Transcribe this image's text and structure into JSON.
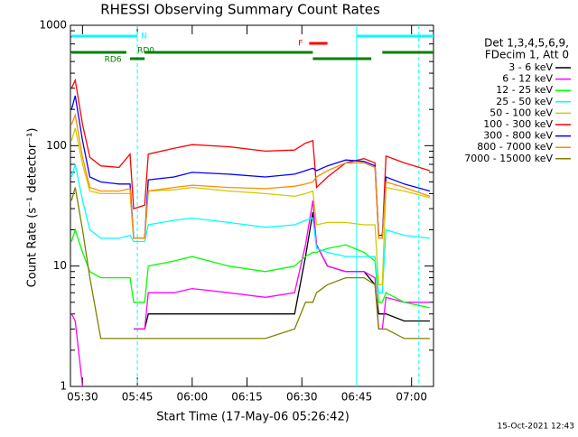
{
  "chart_data": {
    "type": "line",
    "title": "RHESSI Observing Summary Count Rates",
    "xlabel": "Start Time (17-May-06 05:26:42)",
    "ylabel": "Count Rate (s⁻¹ detector⁻¹)",
    "footer": "15-Oct-2021 12:43",
    "legend_title": [
      "Det 1,3,4,5,6,9,",
      "FDecim 1, Att 0"
    ],
    "log_y": true,
    "xlim": [
      "05:26:42",
      "07:06"
    ],
    "ylim": [
      1,
      1000
    ],
    "yticks": [
      1,
      10,
      100,
      1000
    ],
    "xticks": [
      "05:30",
      "05:45",
      "06:00",
      "06:15",
      "06:30",
      "06:45",
      "07:00"
    ],
    "x": [
      "05:27",
      "05:28",
      "05:30",
      "05:32",
      "05:35",
      "05:40",
      "05:43",
      "05:44",
      "05:47",
      "05:48",
      "05:55",
      "06:00",
      "06:10",
      "06:20",
      "06:28",
      "06:31",
      "06:33",
      "06:34",
      "06:37",
      "06:42",
      "06:47",
      "06:50",
      "06:51",
      "06:52",
      "06:53",
      "06:58",
      "07:05"
    ],
    "series": [
      {
        "name": "3 - 6 keV",
        "color": "#000000",
        "values": [
          null,
          null,
          null,
          null,
          null,
          null,
          null,
          3,
          3,
          4,
          4,
          4,
          4,
          4,
          4,
          12,
          28,
          15,
          10,
          9,
          9,
          7,
          4,
          4,
          4,
          3.5,
          3.5
        ]
      },
      {
        "name": "6 - 12 keV",
        "color": "#ff00ff",
        "values": [
          4,
          3.5,
          1,
          null,
          null,
          null,
          null,
          3,
          3,
          6,
          6,
          6.5,
          6,
          5.5,
          6,
          15,
          35,
          15,
          10,
          9,
          9,
          8,
          3,
          3,
          5.5,
          5,
          5
        ]
      },
      {
        "name": "12 - 25 keV",
        "color": "#00ff00",
        "values": [
          16,
          20,
          13,
          9,
          8,
          8,
          8,
          5,
          5,
          10,
          11,
          12,
          10,
          9,
          10,
          12,
          13,
          13,
          14,
          15,
          13,
          11,
          5,
          5,
          6,
          5,
          4.5
        ]
      },
      {
        "name": "25 - 50 keV",
        "color": "#00ffff",
        "values": [
          55,
          70,
          35,
          20,
          17,
          17,
          18,
          16,
          16,
          22,
          24,
          25,
          23,
          21,
          22,
          24,
          25,
          14,
          13,
          12,
          12,
          12,
          6,
          6,
          20,
          18,
          17
        ]
      },
      {
        "name": "50 - 100 keV",
        "color": "#cccc00",
        "values": [
          110,
          140,
          70,
          42,
          40,
          40,
          40,
          17,
          17,
          42,
          43,
          45,
          42,
          40,
          38,
          40,
          42,
          22,
          23,
          23,
          22,
          22,
          7,
          7,
          45,
          42,
          37
        ]
      },
      {
        "name": "100 - 300 keV",
        "color": "#ff0000",
        "values": [
          300,
          350,
          150,
          80,
          68,
          66,
          85,
          30,
          32,
          85,
          95,
          102,
          98,
          90,
          92,
          105,
          110,
          45,
          55,
          72,
          78,
          72,
          17,
          17,
          82,
          72,
          62
        ]
      },
      {
        "name": "300 - 800 keV",
        "color": "#0000ff",
        "values": [
          200,
          260,
          110,
          55,
          50,
          48,
          48,
          17,
          17,
          52,
          55,
          60,
          58,
          55,
          58,
          62,
          65,
          62,
          68,
          76,
          74,
          68,
          18,
          18,
          55,
          48,
          42
        ]
      },
      {
        "name": "800 - 7000 keV",
        "color": "#ff8c00",
        "values": [
          150,
          180,
          80,
          45,
          42,
          42,
          44,
          17,
          17,
          42,
          45,
          47,
          45,
          44,
          46,
          48,
          50,
          55,
          62,
          72,
          72,
          66,
          17,
          17,
          50,
          45,
          38
        ]
      },
      {
        "name": "7000 - 15000 keV",
        "color": "#808000",
        "values": [
          35,
          45,
          20,
          8,
          2.5,
          2.5,
          2.5,
          2.5,
          2.5,
          2.5,
          2.5,
          2.5,
          2.5,
          2.5,
          3,
          5,
          5,
          6,
          7,
          8,
          8,
          7,
          3,
          3,
          3,
          2.5,
          2.5
        ]
      }
    ],
    "flags": [
      {
        "label": "N",
        "color": "#00ffff",
        "row": 0,
        "label_at": "05:46",
        "segments": [
          [
            "05:27",
            "05:45"
          ],
          [
            "06:45",
            "07:06"
          ]
        ]
      },
      {
        "label": "F",
        "color": "#ff0000",
        "row": 1,
        "label_at": "06:29",
        "segments": [
          [
            "06:32",
            "06:37"
          ]
        ]
      },
      {
        "label": "RD0",
        "color": "#008000",
        "row": 2,
        "label_at": "05:45",
        "segments": [
          [
            "05:27",
            "05:42"
          ],
          [
            "05:47",
            "06:33"
          ],
          [
            "06:52",
            "07:06"
          ]
        ]
      },
      {
        "label": "RD6",
        "color": "#008000",
        "row": 3,
        "label_at": "05:36",
        "segments": [
          [
            "05:43",
            "05:47"
          ],
          [
            "06:33",
            "06:49"
          ]
        ]
      }
    ],
    "markers": [
      {
        "time": "05:45",
        "color": "#00ffff",
        "dashed": true
      },
      {
        "time": "06:45",
        "color": "#00ffff",
        "dashed": false
      },
      {
        "time": "07:02",
        "color": "#00ffff",
        "dashed": true
      }
    ]
  }
}
